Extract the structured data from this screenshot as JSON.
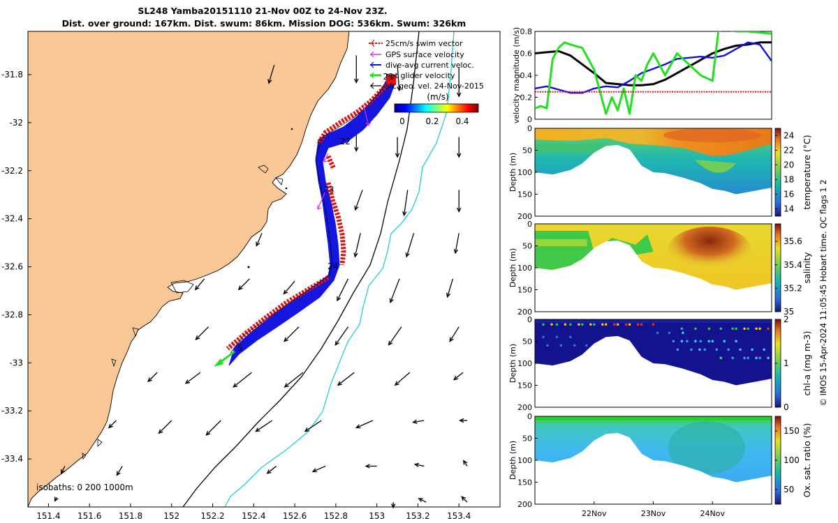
{
  "title": {
    "line1": "SL248 Yamba20151110 21-Nov 00Z to 24-Nov 23Z.",
    "line2": "Dist. over ground: 167km. Dist. swum: 86km. Mission DOG: 536km. Swum: 326km"
  },
  "credit": "© IMOS 15-Apr-2024 11:05:45 Hobart time. QC flags 1  2",
  "colors": {
    "land": "#FAC896",
    "swim": "#E01010",
    "gps": "#E030E0",
    "current": "#1010E0",
    "net": "#20E020",
    "geo": "#000000",
    "iso200": "#000000",
    "iso1000": "#20D0D0"
  },
  "chart_data": [
    {
      "type": "map",
      "id": "track_map",
      "xlim": [
        151.3,
        153.6
      ],
      "ylim": [
        -33.6,
        -31.62
      ],
      "x_ticks": [
        151.4,
        151.6,
        151.8,
        152,
        152.2,
        152.4,
        152.6,
        152.8,
        153,
        153.2,
        153.4
      ],
      "x_tick_labels": [
        "151.4",
        "151.6",
        "151.8",
        "152",
        "152.2",
        "152.4",
        "152.6",
        "152.8",
        "153",
        "153.2",
        "153.4"
      ],
      "y_ticks": [
        -31.8,
        -32,
        -32.2,
        -32.4,
        -32.6,
        -32.8,
        -33,
        -33.2,
        -33.4
      ],
      "y_tick_labels": [
        "-31.8",
        "-32",
        "-32.2",
        "-32.4",
        "-32.6",
        "-32.8",
        "-33",
        "-33.2",
        "-33.4"
      ],
      "legend": [
        {
          "label": "25cm/s swim vector",
          "color": "swim"
        },
        {
          "label": "GPS surface velocity",
          "color": "gps"
        },
        {
          "label": "dive-avg current veloc.",
          "color": "current"
        },
        {
          "label": "net glider velocity",
          "color": "net"
        },
        {
          "label": "sfc geo. vel. 24-Nov-2015",
          "color": "geo"
        }
      ],
      "colorbar": {
        "label": "(m/s)",
        "ticks": [
          "0",
          "0.2",
          "0.4"
        ],
        "range": [
          0,
          0.45
        ]
      },
      "isobaths_label": "isobaths: 0   200  1000m",
      "day_labels": [
        {
          "text": "21",
          "lon": 153.03,
          "lat": -31.82
        },
        {
          "text": "22",
          "lon": 152.82,
          "lat": -32.09
        },
        {
          "text": "23",
          "lon": 152.74,
          "lat": -32.29
        },
        {
          "text": "24",
          "lon": 152.76,
          "lat": -32.61
        },
        {
          "text": "5",
          "lon": 152.32,
          "lat": -32.95
        }
      ],
      "track": [
        [
          153.02,
          -31.83
        ],
        [
          152.96,
          -31.92
        ],
        [
          152.88,
          -32.0
        ],
        [
          152.76,
          -32.07
        ],
        [
          152.66,
          -32.12
        ],
        [
          152.64,
          -32.16
        ],
        [
          152.63,
          -32.22
        ],
        [
          152.66,
          -32.28
        ],
        [
          152.69,
          -32.34
        ],
        [
          152.71,
          -32.42
        ],
        [
          152.72,
          -32.5
        ],
        [
          152.72,
          -32.58
        ],
        [
          152.71,
          -32.62
        ],
        [
          152.62,
          -32.7
        ],
        [
          152.5,
          -32.79
        ],
        [
          152.38,
          -32.88
        ],
        [
          152.28,
          -32.95
        ],
        [
          152.22,
          -32.98
        ]
      ],
      "geo_vectors": [
        {
          "lon": 152.5,
          "lat": -31.76,
          "u": -0.03,
          "v": -0.1
        },
        {
          "lon": 152.9,
          "lat": -31.72,
          "u": 0.0,
          "v": -0.15
        },
        {
          "lon": 153.1,
          "lat": -31.76,
          "u": 0.01,
          "v": -0.14
        },
        {
          "lon": 153.4,
          "lat": -31.77,
          "u": 0.0,
          "v": -0.16
        },
        {
          "lon": 152.9,
          "lat": -32.05,
          "u": 0.0,
          "v": -0.09
        },
        {
          "lon": 153.1,
          "lat": -32.06,
          "u": 0.0,
          "v": -0.11
        },
        {
          "lon": 153.4,
          "lat": -32.06,
          "u": 0.0,
          "v": -0.11
        },
        {
          "lon": 152.93,
          "lat": -32.28,
          "u": -0.04,
          "v": -0.11
        },
        {
          "lon": 153.15,
          "lat": -32.28,
          "u": -0.02,
          "v": -0.14
        },
        {
          "lon": 153.4,
          "lat": -32.28,
          "u": 0.0,
          "v": -0.12
        },
        {
          "lon": 152.44,
          "lat": -32.46,
          "u": -0.03,
          "v": -0.07
        },
        {
          "lon": 152.92,
          "lat": -32.46,
          "u": -0.03,
          "v": -0.13
        },
        {
          "lon": 153.18,
          "lat": -32.46,
          "u": -0.04,
          "v": -0.13
        },
        {
          "lon": 153.4,
          "lat": -32.46,
          "u": -0.02,
          "v": -0.11
        },
        {
          "lon": 152.16,
          "lat": -32.65,
          "u": -0.05,
          "v": -0.06
        },
        {
          "lon": 152.38,
          "lat": -32.65,
          "u": -0.06,
          "v": -0.06
        },
        {
          "lon": 152.6,
          "lat": -32.66,
          "u": -0.06,
          "v": -0.07
        },
        {
          "lon": 152.86,
          "lat": -32.65,
          "u": -0.06,
          "v": -0.12
        },
        {
          "lon": 153.11,
          "lat": -32.65,
          "u": -0.05,
          "v": -0.13
        },
        {
          "lon": 153.37,
          "lat": -32.65,
          "u": -0.03,
          "v": -0.1
        },
        {
          "lon": 152.18,
          "lat": -32.85,
          "u": -0.07,
          "v": -0.07
        },
        {
          "lon": 152.62,
          "lat": -32.85,
          "u": -0.08,
          "v": -0.08
        },
        {
          "lon": 152.86,
          "lat": -32.85,
          "u": -0.07,
          "v": -0.1
        },
        {
          "lon": 153.12,
          "lat": -32.85,
          "u": -0.07,
          "v": -0.1
        },
        {
          "lon": 153.4,
          "lat": -32.85,
          "u": -0.05,
          "v": -0.08
        },
        {
          "lon": 151.93,
          "lat": -33.04,
          "u": -0.05,
          "v": -0.05
        },
        {
          "lon": 152.14,
          "lat": -33.04,
          "u": -0.08,
          "v": -0.06
        },
        {
          "lon": 152.39,
          "lat": -33.04,
          "u": -0.1,
          "v": -0.08
        },
        {
          "lon": 152.64,
          "lat": -33.04,
          "u": -0.1,
          "v": -0.08
        },
        {
          "lon": 152.89,
          "lat": -33.04,
          "u": -0.09,
          "v": -0.07
        },
        {
          "lon": 153.16,
          "lat": -33.04,
          "u": -0.08,
          "v": -0.07
        },
        {
          "lon": 153.42,
          "lat": -33.04,
          "u": -0.05,
          "v": -0.04
        },
        {
          "lon": 151.73,
          "lat": -33.24,
          "u": -0.04,
          "v": -0.04
        },
        {
          "lon": 152.0,
          "lat": -33.24,
          "u": -0.07,
          "v": -0.07
        },
        {
          "lon": 152.24,
          "lat": -33.24,
          "u": -0.08,
          "v": -0.08
        },
        {
          "lon": 152.49,
          "lat": -33.24,
          "u": -0.09,
          "v": -0.06
        },
        {
          "lon": 152.73,
          "lat": -33.24,
          "u": -0.09,
          "v": -0.06
        },
        {
          "lon": 152.98,
          "lat": -33.24,
          "u": -0.09,
          "v": -0.04
        },
        {
          "lon": 153.23,
          "lat": -33.24,
          "u": -0.06,
          "v": -0.01
        },
        {
          "lon": 153.44,
          "lat": -33.24,
          "u": -0.04,
          "v": 0.0
        },
        {
          "lon": 151.48,
          "lat": -33.43,
          "u": -0.02,
          "v": -0.04
        },
        {
          "lon": 151.76,
          "lat": -33.43,
          "u": -0.03,
          "v": -0.05
        },
        {
          "lon": 152.51,
          "lat": -33.43,
          "u": -0.05,
          "v": -0.04
        },
        {
          "lon": 152.75,
          "lat": -33.43,
          "u": -0.07,
          "v": -0.03
        },
        {
          "lon": 153.0,
          "lat": -33.43,
          "u": -0.06,
          "v": 0.0
        },
        {
          "lon": 153.23,
          "lat": -33.43,
          "u": -0.05,
          "v": 0.01
        },
        {
          "lon": 153.44,
          "lat": -33.43,
          "u": -0.02,
          "v": 0.03
        },
        {
          "lon": 151.44,
          "lat": -33.56,
          "u": -0.01,
          "v": -0.02
        },
        {
          "lon": 153.08,
          "lat": -33.58,
          "u": 0.0,
          "v": -0.03
        },
        {
          "lon": 153.24,
          "lat": -33.58,
          "u": -0.04,
          "v": 0.02
        },
        {
          "lon": 153.44,
          "lat": -33.58,
          "u": -0.03,
          "v": 0.03
        }
      ]
    },
    {
      "type": "line",
      "id": "velocity",
      "ylabel": "velocity magnitude (m/s)",
      "xlim": [
        21,
        25
      ],
      "ylim": [
        0,
        0.8
      ],
      "y_ticks": [
        0,
        0.2,
        0.4,
        0.6,
        0.8
      ],
      "y_tick_labels": [
        "0",
        "0.2",
        "0.4",
        "0.6",
        "0.8"
      ],
      "series": [
        {
          "color": "geo",
          "x": [
            21.0,
            21.2,
            21.4,
            21.6,
            21.8,
            22.0,
            22.2,
            22.4,
            22.6,
            22.8,
            23.0,
            23.2,
            23.4,
            23.6,
            23.8,
            24.0,
            24.2,
            24.4,
            24.6,
            24.8,
            25.0
          ],
          "values": [
            0.6,
            0.61,
            0.62,
            0.58,
            0.5,
            0.42,
            0.33,
            0.32,
            0.31,
            0.31,
            0.32,
            0.36,
            0.42,
            0.48,
            0.54,
            0.6,
            0.64,
            0.67,
            0.68,
            0.7,
            0.7
          ]
        },
        {
          "color": "current",
          "x": [
            21.0,
            21.2,
            21.4,
            21.6,
            21.8,
            22.0,
            22.2,
            22.4,
            22.6,
            22.8,
            23.0,
            23.2,
            23.4,
            23.6,
            23.8,
            24.0,
            24.2,
            24.4,
            24.6,
            24.8,
            25.0
          ],
          "values": [
            0.28,
            0.3,
            0.27,
            0.24,
            0.24,
            0.28,
            0.3,
            0.29,
            0.35,
            0.42,
            0.46,
            0.5,
            0.55,
            0.56,
            0.57,
            0.56,
            0.58,
            0.64,
            0.7,
            0.68,
            0.53
          ]
        },
        {
          "color": "net",
          "x": [
            21.0,
            21.1,
            21.2,
            21.3,
            21.4,
            21.5,
            21.6,
            21.8,
            22.0,
            22.1,
            22.2,
            22.3,
            22.4,
            22.5,
            22.6,
            22.7,
            22.8,
            22.9,
            23.0,
            23.2,
            23.4,
            23.6,
            23.8,
            24.0,
            24.1,
            24.2,
            24.4,
            24.6,
            25.0
          ],
          "values": [
            0.1,
            0.12,
            0.1,
            0.55,
            0.65,
            0.7,
            0.68,
            0.65,
            0.45,
            0.25,
            0.05,
            0.2,
            0.08,
            0.28,
            0.05,
            0.4,
            0.35,
            0.5,
            0.6,
            0.4,
            0.6,
            0.5,
            0.4,
            0.35,
            0.8,
            0.82,
            0.8,
            0.8,
            0.78
          ]
        },
        {
          "color": "swim",
          "x": [
            21.0,
            25.0
          ],
          "values": [
            0.25,
            0.25
          ]
        }
      ]
    },
    {
      "type": "heatmap",
      "id": "temperature",
      "ylabel": "Depth (m)",
      "cblabel": "temperature (°C)",
      "ylim": [
        200,
        0
      ],
      "y_ticks": [
        0,
        50,
        100,
        150,
        200
      ],
      "y_tick_labels": [
        "0",
        "50",
        "100",
        "150",
        "200"
      ],
      "clim": [
        13,
        25
      ],
      "cb_ticks": [
        "14",
        "16",
        "18",
        "20",
        "22",
        "24"
      ],
      "cb_values": [
        14,
        16,
        18,
        20,
        22,
        24
      ]
    },
    {
      "type": "heatmap",
      "id": "salinity",
      "ylabel": "Depth (m)",
      "cblabel": "salinity",
      "ylim": [
        200,
        0
      ],
      "y_ticks": [
        0,
        50,
        100,
        150,
        200
      ],
      "y_tick_labels": [
        "0",
        "50",
        "100",
        "150",
        "200"
      ],
      "clim": [
        35,
        35.75
      ],
      "cb_ticks": [
        "35",
        "35.2",
        "35.4",
        "35.6"
      ],
      "cb_values": [
        35,
        35.2,
        35.4,
        35.6
      ]
    },
    {
      "type": "heatmap",
      "id": "chla",
      "ylabel": "Depth (m)",
      "cblabel": "chl-a (mg m-3)",
      "ylim": [
        200,
        0
      ],
      "y_ticks": [
        0,
        50,
        100,
        150,
        200
      ],
      "y_tick_labels": [
        "0",
        "50",
        "100",
        "150",
        "200"
      ],
      "clim": [
        0,
        2
      ],
      "cb_ticks": [
        "0",
        "1",
        "2"
      ],
      "cb_values": [
        0,
        1,
        2
      ]
    },
    {
      "type": "heatmap",
      "id": "oxygen",
      "ylabel": "Depth (m)",
      "cblabel": "Ox. sat. ratio (%)",
      "ylim": [
        200,
        0
      ],
      "y_ticks": [
        0,
        50,
        100,
        150,
        200
      ],
      "y_tick_labels": [
        "0",
        "50",
        "100",
        "150",
        "200"
      ],
      "clim": [
        25,
        175
      ],
      "cb_ticks": [
        "50",
        "100",
        "150"
      ],
      "cb_values": [
        50,
        100,
        150
      ],
      "x_tick_labels": [
        "22Nov",
        "23Nov",
        "24Nov"
      ],
      "x_ticks": [
        22,
        23,
        24
      ]
    }
  ],
  "bottom_profile": [
    [
      21.0,
      100
    ],
    [
      21.3,
      105
    ],
    [
      21.6,
      95
    ],
    [
      21.8,
      80
    ],
    [
      22.0,
      55
    ],
    [
      22.2,
      40
    ],
    [
      22.4,
      38
    ],
    [
      22.6,
      48
    ],
    [
      22.8,
      85
    ],
    [
      23.0,
      100
    ],
    [
      23.2,
      102
    ],
    [
      23.5,
      112
    ],
    [
      23.8,
      125
    ],
    [
      24.0,
      138
    ],
    [
      24.2,
      142
    ],
    [
      24.4,
      150
    ],
    [
      24.6,
      145
    ],
    [
      24.8,
      140
    ],
    [
      25.0,
      135
    ]
  ]
}
